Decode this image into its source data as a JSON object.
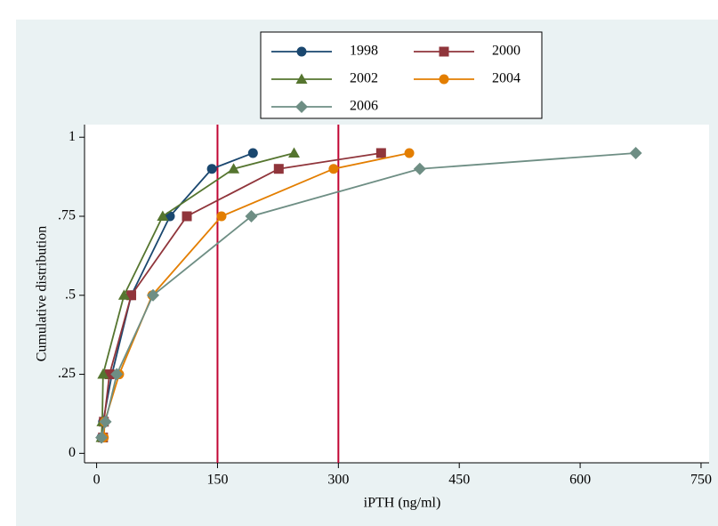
{
  "chart_data": {
    "type": "line",
    "x_label": "iPTH (ng/ml)",
    "y_label": "Cumulative distribution",
    "xlim": [
      -15,
      760
    ],
    "ylim": [
      -0.03,
      1.04
    ],
    "xticks": [
      0,
      150,
      300,
      450,
      600,
      750
    ],
    "yticks": [
      0,
      {
        "value": 0.25,
        "label": ".25"
      },
      {
        "value": 0.5,
        "label": ".5"
      },
      {
        "value": 0.75,
        "label": ".75"
      },
      1
    ],
    "reference_lines": {
      "x": [
        150,
        300
      ],
      "color": "#c10534"
    },
    "series": [
      {
        "name": "1998",
        "color": "#1a476f",
        "marker": "circle",
        "x": [
          6,
          8,
          19,
          43,
          91,
          143,
          194
        ],
        "values": [
          0.05,
          0.1,
          0.25,
          0.5,
          0.75,
          0.9,
          0.95
        ]
      },
      {
        "name": "2000",
        "color": "#90353b",
        "marker": "square",
        "x": [
          8,
          9,
          16,
          43,
          112,
          226,
          353
        ],
        "values": [
          0.05,
          0.1,
          0.25,
          0.5,
          0.75,
          0.9,
          0.95
        ]
      },
      {
        "name": "2002",
        "color": "#55752f",
        "marker": "triangle",
        "x": [
          6,
          7,
          8,
          34,
          82,
          170,
          245
        ],
        "values": [
          0.05,
          0.1,
          0.25,
          0.5,
          0.75,
          0.9,
          0.95
        ]
      },
      {
        "name": "2004",
        "color": "#e37e00",
        "marker": "circle",
        "x": [
          9,
          10,
          28,
          69,
          155,
          294,
          388
        ],
        "values": [
          0.05,
          0.1,
          0.25,
          0.5,
          0.75,
          0.9,
          0.95
        ]
      },
      {
        "name": "2006",
        "color": "#6e8e84",
        "marker": "diamond",
        "x": [
          6,
          11,
          25,
          70,
          192,
          401,
          669
        ],
        "values": [
          0.05,
          0.1,
          0.25,
          0.5,
          0.75,
          0.9,
          0.95
        ]
      }
    ]
  }
}
